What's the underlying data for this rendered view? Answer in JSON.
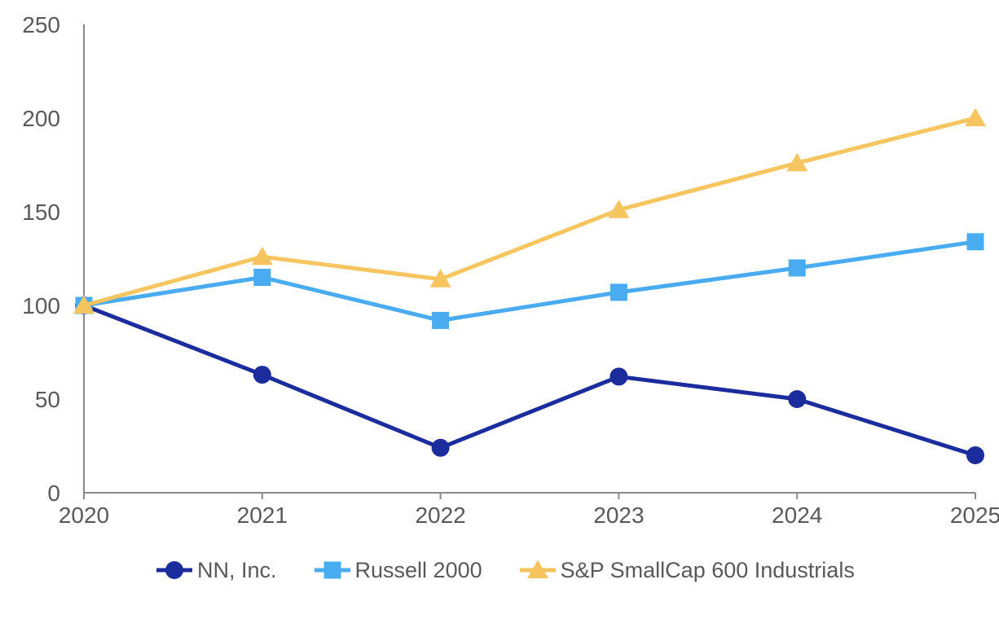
{
  "chart_data": {
    "type": "line",
    "title": "",
    "xlabel": "",
    "ylabel": "",
    "categories": [
      "2020",
      "2021",
      "2022",
      "2023",
      "2024",
      "2025"
    ],
    "series": [
      {
        "name": "NN, Inc.",
        "marker": "circle",
        "color": "#1B2C9D",
        "values": [
          100,
          63,
          24,
          62,
          50,
          20
        ]
      },
      {
        "name": "Russell 2000",
        "marker": "square",
        "color": "#4AACF0",
        "values": [
          100,
          115,
          92,
          107,
          120,
          134
        ]
      },
      {
        "name": "S&P SmallCap 600 Industrials",
        "marker": "triangle",
        "color": "#F6C55F",
        "values": [
          100,
          126,
          114,
          151,
          176,
          200
        ]
      }
    ],
    "ylim": [
      0,
      250
    ],
    "yticks": [
      0,
      50,
      100,
      150,
      200,
      250
    ],
    "grid": false,
    "legend_position": "bottom",
    "axis_color": "#8A8A8A",
    "tick_label_color": "#595959"
  }
}
